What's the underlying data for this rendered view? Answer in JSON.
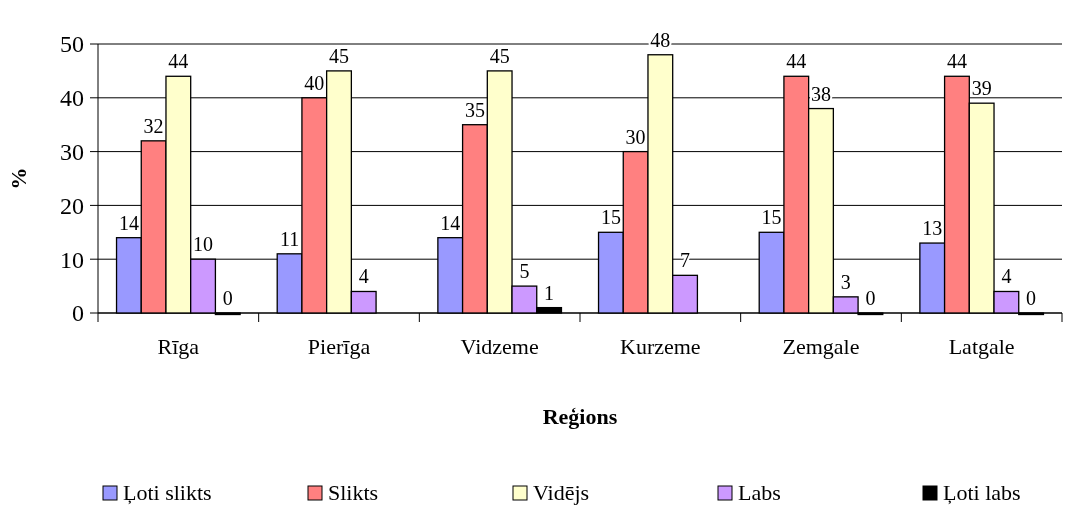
{
  "chart_data": {
    "type": "bar",
    "xlabel": "Reģions",
    "ylabel": "%",
    "categories": [
      "Rīga",
      "Pierīga",
      "Vidzeme",
      "Kurzeme",
      "Zemgale",
      "Latgale"
    ],
    "series": [
      {
        "name": "Ļoti slikts",
        "color": "#9999ff",
        "values": [
          14,
          11,
          14,
          15,
          15,
          13
        ]
      },
      {
        "name": "Slikts",
        "color": "#ff8080",
        "values": [
          32,
          40,
          35,
          30,
          44,
          44
        ]
      },
      {
        "name": "Vidējs",
        "color": "#ffffcc",
        "values": [
          44,
          45,
          45,
          48,
          38,
          39
        ]
      },
      {
        "name": "Labs",
        "color": "#cc99ff",
        "values": [
          10,
          4,
          5,
          7,
          3,
          4
        ]
      },
      {
        "name": "Ļoti labs",
        "color": "#000000",
        "values": [
          0,
          null,
          1,
          null,
          0,
          0
        ]
      }
    ],
    "ylim": [
      0,
      50
    ],
    "yticks": [
      0,
      10,
      20,
      30,
      40,
      50
    ],
    "grid": "y",
    "legend": "bottom",
    "data_labels": true
  }
}
